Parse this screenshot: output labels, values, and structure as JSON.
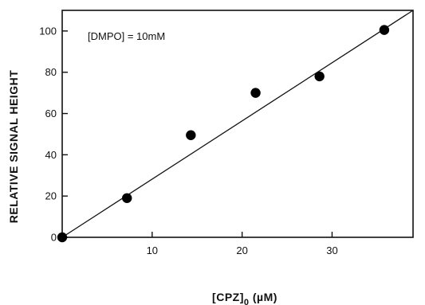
{
  "chart_data": {
    "type": "scatter",
    "title": "",
    "xlabel": "[CPZ]0 (µM)",
    "xlabel_main": "[CPZ]",
    "xlabel_sub": "0",
    "xlabel_unit": " (µM)",
    "ylabel": "RELATIVE SIGNAL HEIGHT",
    "xlim": [
      0,
      39
    ],
    "ylim": [
      0,
      110
    ],
    "xticks": [
      10,
      20,
      30
    ],
    "yticks": [
      0,
      20,
      40,
      60,
      80,
      100
    ],
    "annotation": "[DMPO] = 10mM",
    "series": [
      {
        "x": [
          0,
          7.2,
          14.3,
          21.5,
          28.6,
          35.8
        ],
        "y": [
          0,
          19,
          49.5,
          70,
          78,
          100.5
        ]
      }
    ],
    "fit_line": {
      "x": [
        0,
        39
      ],
      "y": [
        0,
        110
      ]
    },
    "grid": false,
    "legend": "none"
  }
}
